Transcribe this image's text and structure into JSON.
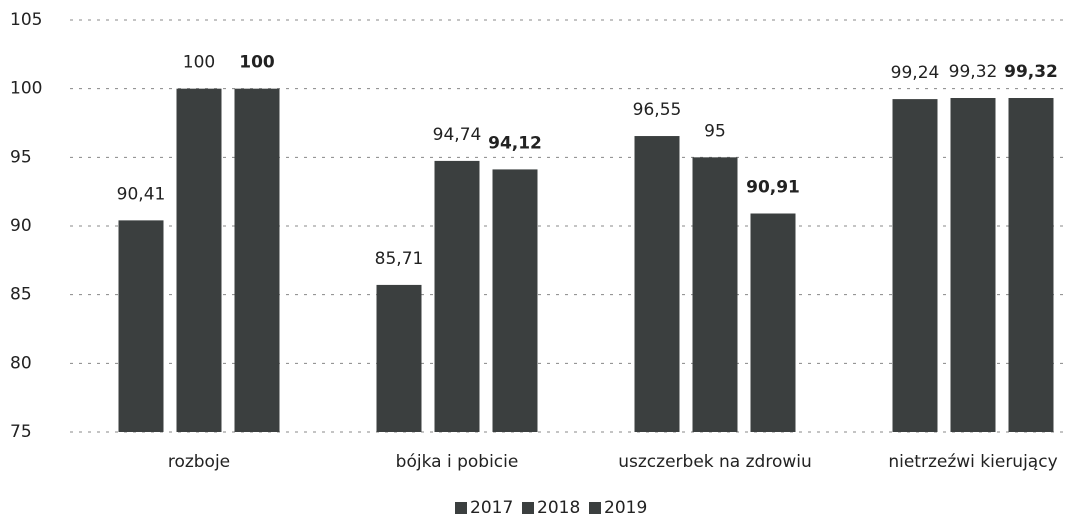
{
  "chart_data": {
    "type": "bar",
    "categories": [
      "rozboje",
      "bójka i pobicie",
      "uszczerbek na zdrowiu",
      "nietrzeźwi kierujący"
    ],
    "series": [
      {
        "name": "2017",
        "color": "#3b3f3f",
        "values": [
          90.41,
          85.71,
          96.55,
          99.24
        ],
        "value_labels": [
          "90,41",
          "85,71",
          "96,55",
          "99,24"
        ]
      },
      {
        "name": "2018",
        "color": "#3b3f3f",
        "values": [
          100,
          94.74,
          95,
          99.32
        ],
        "value_labels": [
          "100",
          "94,74",
          "95",
          "99,32"
        ]
      },
      {
        "name": "2019",
        "color": "#3b3f3f",
        "values": [
          100,
          94.12,
          90.91,
          99.32
        ],
        "value_labels": [
          "100",
          "94,12",
          "90,91",
          "99,32"
        ]
      }
    ],
    "ylim": [
      75,
      105
    ],
    "yticks": [
      75,
      80,
      85,
      90,
      95,
      100,
      105
    ],
    "grid": true,
    "legend": "bottom"
  }
}
